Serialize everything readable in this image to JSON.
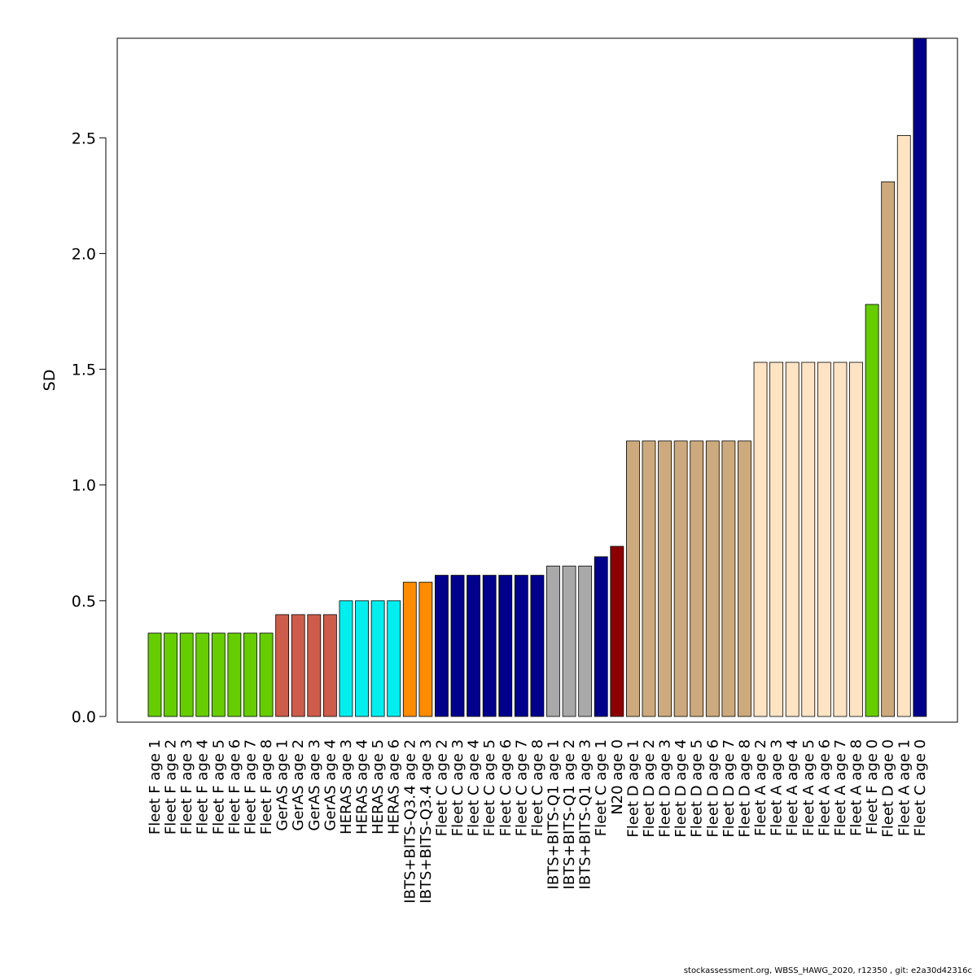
{
  "footer": "stockassessment.org, WBSS_HAWG_2020, r12350 , git: e2a30d42316c",
  "chart_data": {
    "type": "bar",
    "ylabel": "SD",
    "ylim": [
      0,
      2.93
    ],
    "yticks": [
      0.0,
      0.5,
      1.0,
      1.5,
      2.0,
      2.5
    ],
    "ytick_labels": [
      "0.0",
      "0.5",
      "1.0",
      "1.5",
      "2.0",
      "2.5"
    ],
    "grid": false,
    "bars": [
      {
        "label": "Fleet F age 1",
        "value": 0.36,
        "color": "#66CD00"
      },
      {
        "label": "Fleet F age 2",
        "value": 0.36,
        "color": "#66CD00"
      },
      {
        "label": "Fleet F age 3",
        "value": 0.36,
        "color": "#66CD00"
      },
      {
        "label": "Fleet F age 4",
        "value": 0.36,
        "color": "#66CD00"
      },
      {
        "label": "Fleet F age 5",
        "value": 0.36,
        "color": "#66CD00"
      },
      {
        "label": "Fleet F age 6",
        "value": 0.36,
        "color": "#66CD00"
      },
      {
        "label": "Fleet F age 7",
        "value": 0.36,
        "color": "#66CD00"
      },
      {
        "label": "Fleet F age 8",
        "value": 0.36,
        "color": "#66CD00"
      },
      {
        "label": "GerAS age 1",
        "value": 0.44,
        "color": "#CD5C4B"
      },
      {
        "label": "GerAS age 2",
        "value": 0.44,
        "color": "#CD5C4B"
      },
      {
        "label": "GerAS age 3",
        "value": 0.44,
        "color": "#CD5C4B"
      },
      {
        "label": "GerAS age 4",
        "value": 0.44,
        "color": "#CD5C4B"
      },
      {
        "label": "HERAS age 3",
        "value": 0.5,
        "color": "#00EEEE"
      },
      {
        "label": "HERAS age 4",
        "value": 0.5,
        "color": "#00EEEE"
      },
      {
        "label": "HERAS age 5",
        "value": 0.5,
        "color": "#00EEEE"
      },
      {
        "label": "HERAS age 6",
        "value": 0.5,
        "color": "#00EEEE"
      },
      {
        "label": "IBTS+BITS-Q3.4 age 2",
        "value": 0.58,
        "color": "#FF8C00"
      },
      {
        "label": "IBTS+BITS-Q3.4 age 3",
        "value": 0.58,
        "color": "#FF8C00"
      },
      {
        "label": "Fleet C age 2",
        "value": 0.61,
        "color": "#00008B"
      },
      {
        "label": "Fleet C age 3",
        "value": 0.61,
        "color": "#00008B"
      },
      {
        "label": "Fleet C age 4",
        "value": 0.61,
        "color": "#00008B"
      },
      {
        "label": "Fleet C age 5",
        "value": 0.61,
        "color": "#00008B"
      },
      {
        "label": "Fleet C age 6",
        "value": 0.61,
        "color": "#00008B"
      },
      {
        "label": "Fleet C age 7",
        "value": 0.61,
        "color": "#00008B"
      },
      {
        "label": "Fleet C age 8",
        "value": 0.61,
        "color": "#00008B"
      },
      {
        "label": "IBTS+BITS-Q1 age 1",
        "value": 0.65,
        "color": "#A9A9A9"
      },
      {
        "label": "IBTS+BITS-Q1 age 2",
        "value": 0.65,
        "color": "#A9A9A9"
      },
      {
        "label": "IBTS+BITS-Q1 age 3",
        "value": 0.65,
        "color": "#A9A9A9"
      },
      {
        "label": "Fleet C age 1",
        "value": 0.69,
        "color": "#00008B"
      },
      {
        "label": "N20 age 0",
        "value": 0.735,
        "color": "#8B0000"
      },
      {
        "label": "Fleet D age 1",
        "value": 1.19,
        "color": "#CDAA7D"
      },
      {
        "label": "Fleet D age 2",
        "value": 1.19,
        "color": "#CDAA7D"
      },
      {
        "label": "Fleet D age 3",
        "value": 1.19,
        "color": "#CDAA7D"
      },
      {
        "label": "Fleet D age 4",
        "value": 1.19,
        "color": "#CDAA7D"
      },
      {
        "label": "Fleet D age 5",
        "value": 1.19,
        "color": "#CDAA7D"
      },
      {
        "label": "Fleet D age 6",
        "value": 1.19,
        "color": "#CDAA7D"
      },
      {
        "label": "Fleet D age 7",
        "value": 1.19,
        "color": "#CDAA7D"
      },
      {
        "label": "Fleet D age 8",
        "value": 1.19,
        "color": "#CDAA7D"
      },
      {
        "label": "Fleet A age 2",
        "value": 1.53,
        "color": "#FFE4C4"
      },
      {
        "label": "Fleet A age 3",
        "value": 1.53,
        "color": "#FFE4C4"
      },
      {
        "label": "Fleet A age 4",
        "value": 1.53,
        "color": "#FFE4C4"
      },
      {
        "label": "Fleet A age 5",
        "value": 1.53,
        "color": "#FFE4C4"
      },
      {
        "label": "Fleet A age 6",
        "value": 1.53,
        "color": "#FFE4C4"
      },
      {
        "label": "Fleet A age 7",
        "value": 1.53,
        "color": "#FFE4C4"
      },
      {
        "label": "Fleet A age 8",
        "value": 1.53,
        "color": "#FFE4C4"
      },
      {
        "label": "Fleet F age 0",
        "value": 1.78,
        "color": "#66CD00"
      },
      {
        "label": "Fleet D age 0",
        "value": 2.31,
        "color": "#CDAA7D"
      },
      {
        "label": "Fleet A age 1",
        "value": 2.51,
        "color": "#FFE4C4"
      },
      {
        "label": "Fleet C age 0",
        "value": 2.93,
        "color": "#00008B"
      }
    ]
  }
}
